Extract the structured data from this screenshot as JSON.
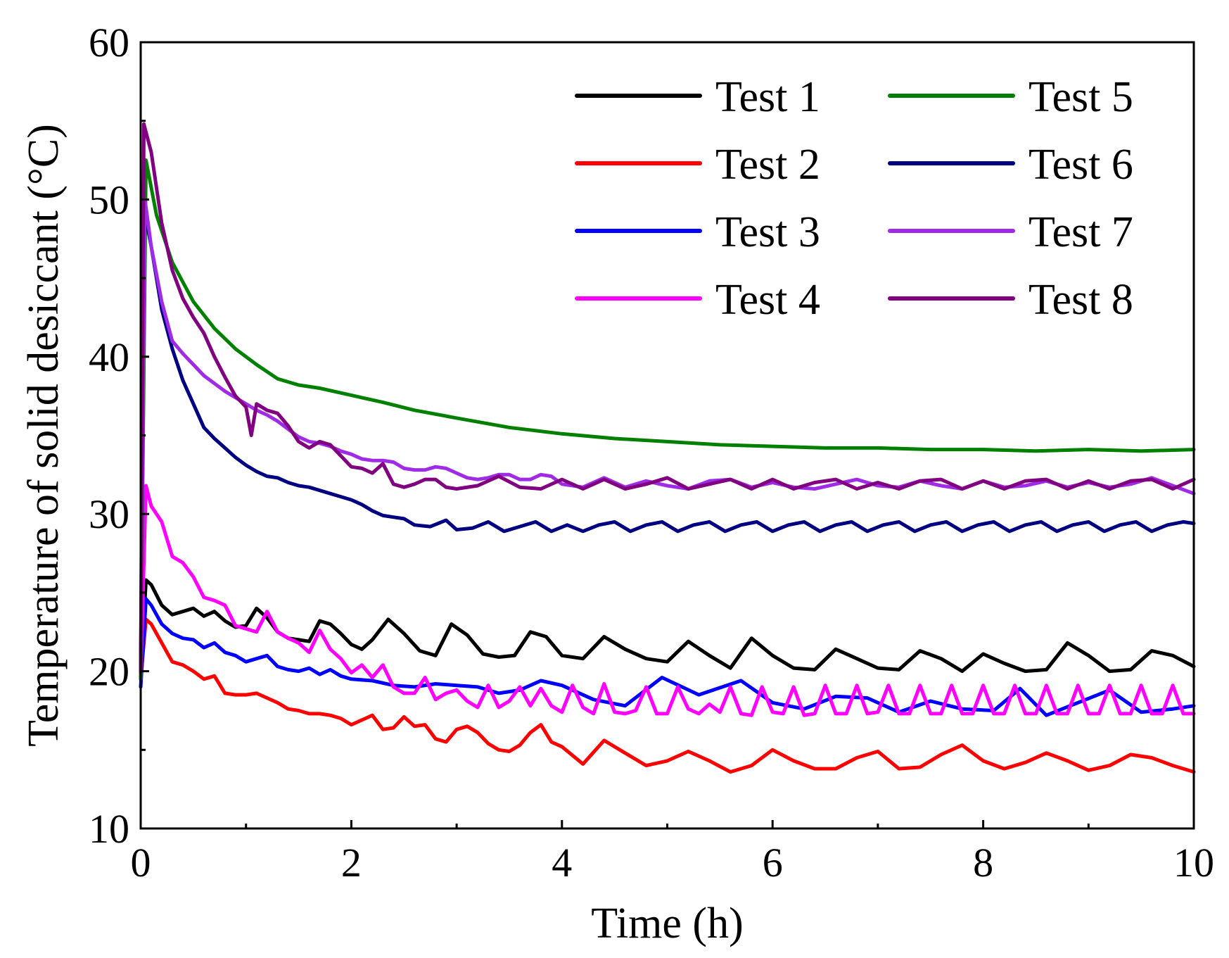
{
  "chart_data": {
    "type": "line",
    "title": "",
    "xlabel": "Time (h)",
    "ylabel": "Temperature of solid desiccant (°C)",
    "xlim": [
      0,
      10
    ],
    "ylim": [
      10,
      60
    ],
    "xticks": [
      0,
      2,
      4,
      6,
      8,
      10
    ],
    "yticks": [
      10,
      20,
      30,
      40,
      50,
      60
    ],
    "x_minor_step": 1,
    "y_minor_step": 5,
    "grid": false,
    "legend_position": "top-right",
    "series": [
      {
        "name": "Test 1",
        "color": "#000000",
        "x": [
          0,
          0.05,
          0.1,
          0.2,
          0.3,
          0.4,
          0.5,
          0.6,
          0.7,
          0.8,
          0.9,
          1.0,
          1.1,
          1.2,
          1.3,
          1.4,
          1.5,
          1.6,
          1.7,
          1.8,
          1.9,
          2.0,
          2.1,
          2.2,
          2.35,
          2.5,
          2.65,
          2.8,
          2.95,
          3.1,
          3.25,
          3.4,
          3.55,
          3.7,
          3.85,
          4.0,
          4.2,
          4.4,
          4.6,
          4.8,
          5.0,
          5.2,
          5.4,
          5.6,
          5.8,
          6.0,
          6.2,
          6.4,
          6.6,
          6.8,
          7.0,
          7.2,
          7.4,
          7.6,
          7.8,
          8.0,
          8.2,
          8.4,
          8.6,
          8.8,
          9.0,
          9.2,
          9.4,
          9.6,
          9.8,
          10.0
        ],
        "y": [
          19.5,
          25.8,
          25.5,
          24.2,
          23.6,
          23.8,
          24.0,
          23.5,
          23.8,
          23.2,
          22.8,
          22.9,
          24.0,
          23.4,
          22.5,
          22.1,
          22.0,
          21.9,
          23.2,
          23.0,
          22.4,
          21.7,
          21.4,
          22.0,
          23.3,
          22.4,
          21.3,
          21.0,
          23.0,
          22.3,
          21.1,
          20.9,
          21.0,
          22.5,
          22.2,
          21.0,
          20.8,
          22.2,
          21.4,
          20.8,
          20.6,
          21.9,
          21.0,
          20.2,
          22.1,
          21.0,
          20.2,
          20.1,
          21.4,
          20.8,
          20.2,
          20.1,
          21.3,
          20.8,
          20.0,
          21.1,
          20.5,
          20.0,
          20.1,
          21.8,
          21.0,
          20.0,
          20.1,
          21.3,
          21.0,
          20.3
        ]
      },
      {
        "name": "Test 2",
        "color": "#ff0000",
        "x": [
          0,
          0.05,
          0.1,
          0.2,
          0.3,
          0.4,
          0.5,
          0.6,
          0.7,
          0.8,
          0.9,
          1.0,
          1.1,
          1.2,
          1.3,
          1.4,
          1.5,
          1.6,
          1.7,
          1.8,
          1.9,
          2.0,
          2.1,
          2.2,
          2.3,
          2.4,
          2.5,
          2.6,
          2.7,
          2.8,
          2.9,
          3.0,
          3.1,
          3.2,
          3.3,
          3.4,
          3.5,
          3.6,
          3.7,
          3.8,
          3.9,
          4.0,
          4.2,
          4.4,
          4.6,
          4.8,
          5.0,
          5.2,
          5.4,
          5.6,
          5.8,
          6.0,
          6.2,
          6.4,
          6.6,
          6.8,
          7.0,
          7.2,
          7.4,
          7.6,
          7.8,
          8.0,
          8.2,
          8.4,
          8.6,
          8.8,
          9.0,
          9.2,
          9.4,
          9.6,
          9.8,
          10.0
        ],
        "y": [
          19.5,
          23.3,
          23.0,
          21.8,
          20.6,
          20.4,
          20.0,
          19.5,
          19.7,
          18.6,
          18.5,
          18.5,
          18.6,
          18.3,
          18.0,
          17.6,
          17.5,
          17.3,
          17.3,
          17.2,
          17.0,
          16.6,
          16.9,
          17.2,
          16.3,
          16.4,
          17.1,
          16.5,
          16.6,
          15.7,
          15.5,
          16.3,
          16.5,
          16.1,
          15.4,
          15.0,
          14.9,
          15.3,
          16.1,
          16.6,
          15.5,
          15.2,
          14.1,
          15.6,
          14.8,
          14.0,
          14.3,
          14.9,
          14.3,
          13.6,
          14.0,
          15.0,
          14.3,
          13.8,
          13.8,
          14.5,
          14.9,
          13.8,
          13.9,
          14.7,
          15.3,
          14.3,
          13.8,
          14.2,
          14.8,
          14.3,
          13.7,
          14.0,
          14.7,
          14.5,
          14.0,
          13.6
        ]
      },
      {
        "name": "Test 3",
        "color": "#0000ff",
        "x": [
          0,
          0.05,
          0.1,
          0.2,
          0.3,
          0.4,
          0.5,
          0.6,
          0.7,
          0.8,
          0.9,
          1.0,
          1.1,
          1.2,
          1.3,
          1.4,
          1.5,
          1.6,
          1.7,
          1.8,
          1.9,
          2.0,
          2.2,
          2.4,
          2.6,
          2.8,
          3.0,
          3.2,
          3.4,
          3.6,
          3.8,
          4.0,
          4.3,
          4.6,
          4.95,
          5.3,
          5.7,
          6.0,
          6.3,
          6.6,
          6.9,
          7.2,
          7.5,
          7.8,
          8.1,
          8.35,
          8.6,
          8.9,
          9.2,
          9.5,
          9.8,
          10.0
        ],
        "y": [
          19.0,
          24.6,
          24.2,
          23.0,
          22.4,
          22.1,
          22.0,
          21.5,
          21.8,
          21.2,
          21.0,
          20.6,
          20.8,
          21.0,
          20.3,
          20.1,
          20.0,
          20.2,
          19.8,
          20.1,
          19.7,
          19.5,
          19.4,
          19.1,
          19.0,
          19.2,
          19.1,
          19.0,
          18.6,
          18.8,
          19.4,
          19.1,
          18.2,
          17.8,
          19.6,
          18.5,
          19.4,
          18.0,
          17.6,
          18.4,
          18.3,
          17.4,
          18.1,
          17.6,
          17.5,
          18.9,
          17.2,
          18.0,
          18.8,
          17.4,
          17.6,
          17.8
        ]
      },
      {
        "name": "Test 4",
        "color": "#ff00ff",
        "x": [
          0,
          0.05,
          0.1,
          0.2,
          0.3,
          0.4,
          0.5,
          0.6,
          0.7,
          0.8,
          0.9,
          1.0,
          1.1,
          1.2,
          1.3,
          1.4,
          1.5,
          1.6,
          1.7,
          1.8,
          1.9,
          2.0,
          2.1,
          2.2,
          2.3,
          2.4,
          2.5,
          2.6,
          2.7,
          2.8,
          2.9,
          3.0,
          3.1,
          3.2,
          3.3,
          3.4,
          3.5,
          3.6,
          3.7,
          3.8,
          3.9,
          4.0,
          4.1,
          4.2,
          4.3,
          4.4,
          4.5,
          4.6,
          4.7,
          4.8,
          4.9,
          5.0,
          5.1,
          5.2,
          5.3,
          5.4,
          5.5,
          5.6,
          5.7,
          5.8,
          5.9,
          6.0,
          6.1,
          6.2,
          6.3,
          6.4,
          6.5,
          6.6,
          6.7,
          6.8,
          6.9,
          7.0,
          7.1,
          7.2,
          7.3,
          7.4,
          7.5,
          7.6,
          7.7,
          7.8,
          7.9,
          8.0,
          8.1,
          8.2,
          8.3,
          8.4,
          8.5,
          8.6,
          8.7,
          8.8,
          8.9,
          9.0,
          9.1,
          9.2,
          9.3,
          9.4,
          9.5,
          9.6,
          9.7,
          9.8,
          9.9,
          10.0
        ],
        "y": [
          19.5,
          31.8,
          30.5,
          29.5,
          27.3,
          26.9,
          26.0,
          24.7,
          24.5,
          24.2,
          22.9,
          22.7,
          22.5,
          23.8,
          22.5,
          22.1,
          21.8,
          21.2,
          22.6,
          21.4,
          20.8,
          19.9,
          20.4,
          19.6,
          20.4,
          19.0,
          18.6,
          18.6,
          19.6,
          18.2,
          18.6,
          18.8,
          18.1,
          17.7,
          19.1,
          17.7,
          18.1,
          19.0,
          17.8,
          18.9,
          17.8,
          17.4,
          19.1,
          17.7,
          17.3,
          19.2,
          17.4,
          17.3,
          17.5,
          19.0,
          17.3,
          17.3,
          19.0,
          17.6,
          17.3,
          17.9,
          17.4,
          19.0,
          17.3,
          17.2,
          19.0,
          17.4,
          17.3,
          19.0,
          17.2,
          17.3,
          19.1,
          17.3,
          17.3,
          19.1,
          17.3,
          17.4,
          19.1,
          17.3,
          17.3,
          19.1,
          17.3,
          17.3,
          19.1,
          17.3,
          17.3,
          19.1,
          17.3,
          17.3,
          19.1,
          17.3,
          17.3,
          19.1,
          17.3,
          17.3,
          19.1,
          17.3,
          17.3,
          19.1,
          17.3,
          17.3,
          19.1,
          17.3,
          17.3,
          19.1,
          17.3,
          17.3
        ]
      },
      {
        "name": "Test 5",
        "color": "#008000",
        "x": [
          0,
          0.05,
          0.15,
          0.3,
          0.5,
          0.7,
          0.9,
          1.1,
          1.3,
          1.5,
          1.7,
          1.9,
          2.1,
          2.3,
          2.6,
          3.0,
          3.5,
          4.0,
          4.5,
          5.0,
          5.5,
          6.0,
          6.5,
          7.0,
          7.5,
          8.0,
          8.5,
          9.0,
          9.5,
          10.0
        ],
        "y": [
          19.5,
          52.5,
          49.0,
          46.0,
          43.5,
          41.8,
          40.5,
          39.5,
          38.6,
          38.2,
          38.0,
          37.7,
          37.4,
          37.1,
          36.6,
          36.1,
          35.5,
          35.1,
          34.8,
          34.6,
          34.4,
          34.3,
          34.2,
          34.2,
          34.1,
          34.1,
          34.0,
          34.1,
          34.0,
          34.1
        ]
      },
      {
        "name": "Test 6",
        "color": "#000080",
        "x": [
          0,
          0.03,
          0.1,
          0.2,
          0.3,
          0.4,
          0.5,
          0.6,
          0.7,
          0.8,
          0.9,
          1.0,
          1.1,
          1.2,
          1.3,
          1.4,
          1.5,
          1.6,
          1.7,
          1.8,
          1.9,
          2.0,
          2.1,
          2.2,
          2.3,
          2.4,
          2.5,
          2.6,
          2.75,
          2.9,
          3.0,
          3.15,
          3.3,
          3.45,
          3.6,
          3.75,
          3.9,
          4.05,
          4.2,
          4.35,
          4.5,
          4.65,
          4.8,
          4.95,
          5.1,
          5.25,
          5.4,
          5.55,
          5.7,
          5.85,
          6.0,
          6.15,
          6.3,
          6.45,
          6.6,
          6.75,
          6.9,
          7.05,
          7.2,
          7.35,
          7.5,
          7.65,
          7.8,
          7.95,
          8.1,
          8.25,
          8.4,
          8.55,
          8.7,
          8.85,
          9.0,
          9.15,
          9.3,
          9.45,
          9.6,
          9.75,
          9.9,
          10.0
        ],
        "y": [
          20.0,
          49.5,
          47.0,
          43.0,
          40.5,
          38.5,
          37.0,
          35.5,
          34.8,
          34.2,
          33.6,
          33.1,
          32.7,
          32.4,
          32.3,
          32.0,
          31.8,
          31.7,
          31.5,
          31.3,
          31.1,
          30.9,
          30.6,
          30.2,
          29.9,
          29.8,
          29.7,
          29.3,
          29.2,
          29.6,
          29.0,
          29.1,
          29.5,
          28.9,
          29.2,
          29.5,
          28.9,
          29.3,
          28.9,
          29.3,
          29.5,
          28.9,
          29.3,
          29.5,
          28.9,
          29.3,
          29.5,
          28.9,
          29.3,
          29.5,
          28.9,
          29.3,
          29.5,
          28.9,
          29.3,
          29.5,
          28.9,
          29.3,
          29.5,
          28.9,
          29.3,
          29.5,
          28.9,
          29.3,
          29.5,
          28.9,
          29.3,
          29.5,
          28.9,
          29.3,
          29.5,
          28.9,
          29.3,
          29.5,
          28.9,
          29.3,
          29.5,
          29.4
        ]
      },
      {
        "name": "Test 7",
        "color": "#9f2be6",
        "x": [
          0,
          0.04,
          0.1,
          0.2,
          0.3,
          0.4,
          0.5,
          0.6,
          0.7,
          0.8,
          0.9,
          1.0,
          1.1,
          1.2,
          1.3,
          1.4,
          1.5,
          1.6,
          1.7,
          1.8,
          1.9,
          2.0,
          2.1,
          2.2,
          2.3,
          2.4,
          2.5,
          2.6,
          2.7,
          2.8,
          2.9,
          3.0,
          3.1,
          3.2,
          3.3,
          3.4,
          3.5,
          3.6,
          3.7,
          3.8,
          3.9,
          4.0,
          4.2,
          4.4,
          4.6,
          4.8,
          5.0,
          5.2,
          5.4,
          5.6,
          5.8,
          6.0,
          6.2,
          6.4,
          6.6,
          6.8,
          7.0,
          7.2,
          7.4,
          7.6,
          7.8,
          8.0,
          8.2,
          8.4,
          8.6,
          8.8,
          9.0,
          9.2,
          9.4,
          9.6,
          9.8,
          10.0
        ],
        "y": [
          20.0,
          50.0,
          47.0,
          43.5,
          41.0,
          40.2,
          39.5,
          38.8,
          38.3,
          37.8,
          37.4,
          37.0,
          36.6,
          36.3,
          35.9,
          35.4,
          34.9,
          34.6,
          34.5,
          34.3,
          34.0,
          33.8,
          33.5,
          33.4,
          33.4,
          33.3,
          32.9,
          32.8,
          32.8,
          33.0,
          32.9,
          32.6,
          32.3,
          32.2,
          32.3,
          32.5,
          32.5,
          32.2,
          32.2,
          32.5,
          32.4,
          31.9,
          31.7,
          32.3,
          31.7,
          32.1,
          31.8,
          31.6,
          32.1,
          32.2,
          31.7,
          32.0,
          31.7,
          31.6,
          31.9,
          32.2,
          31.8,
          31.7,
          32.1,
          31.8,
          31.6,
          32.1,
          31.7,
          31.8,
          32.1,
          31.7,
          32.0,
          31.7,
          31.9,
          32.3,
          31.8,
          31.3
        ]
      },
      {
        "name": "Test 8",
        "color": "#800080",
        "x": [
          0,
          0.03,
          0.1,
          0.2,
          0.3,
          0.4,
          0.5,
          0.6,
          0.7,
          0.8,
          0.9,
          1.0,
          1.05,
          1.1,
          1.2,
          1.3,
          1.4,
          1.5,
          1.6,
          1.7,
          1.8,
          1.9,
          2.0,
          2.1,
          2.2,
          2.3,
          2.4,
          2.5,
          2.6,
          2.7,
          2.8,
          2.9,
          3.0,
          3.2,
          3.4,
          3.6,
          3.8,
          4.0,
          4.2,
          4.4,
          4.6,
          4.8,
          5.0,
          5.2,
          5.4,
          5.6,
          5.8,
          6.0,
          6.2,
          6.4,
          6.6,
          6.8,
          7.0,
          7.2,
          7.4,
          7.6,
          7.8,
          8.0,
          8.2,
          8.4,
          8.6,
          8.8,
          9.0,
          9.2,
          9.4,
          9.6,
          9.8,
          10.0
        ],
        "y": [
          20.0,
          54.8,
          53.0,
          48.5,
          45.5,
          43.7,
          42.5,
          41.5,
          40.0,
          38.7,
          37.5,
          36.8,
          35.0,
          37.0,
          36.6,
          36.4,
          35.6,
          34.6,
          34.2,
          34.6,
          34.4,
          33.7,
          33.0,
          32.9,
          32.6,
          33.2,
          31.9,
          31.7,
          31.9,
          32.2,
          32.2,
          31.7,
          31.6,
          31.8,
          32.4,
          31.7,
          31.6,
          32.2,
          31.6,
          32.2,
          31.6,
          31.9,
          32.3,
          31.6,
          31.9,
          32.2,
          31.6,
          32.2,
          31.6,
          32.0,
          32.2,
          31.6,
          32.0,
          31.6,
          32.1,
          32.2,
          31.6,
          32.1,
          31.6,
          32.1,
          32.2,
          31.6,
          32.1,
          31.6,
          32.1,
          32.2,
          31.6,
          32.2
        ]
      }
    ]
  }
}
